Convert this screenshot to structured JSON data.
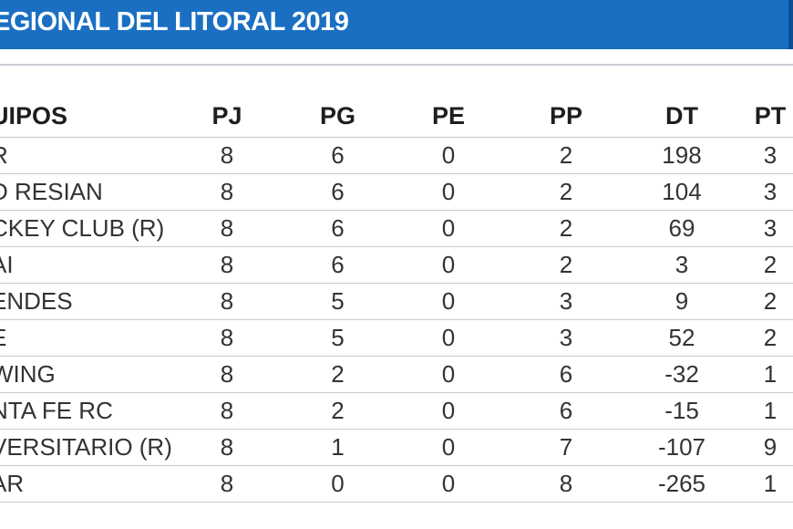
{
  "banner": {
    "title": "EGIONAL DEL LITORAL 2019",
    "color": "#1a6fc2"
  },
  "table": {
    "headers": [
      "UIPOS",
      "PJ",
      "PG",
      "PE",
      "PP",
      "DT",
      "PT"
    ],
    "rows": [
      [
        "R",
        "8",
        "6",
        "0",
        "2",
        "198",
        "3"
      ],
      [
        "D RESIAN",
        "8",
        "6",
        "0",
        "2",
        "104",
        "3"
      ],
      [
        "CKEY CLUB (R)",
        "8",
        "6",
        "0",
        "2",
        "69",
        "3"
      ],
      [
        "AI",
        "8",
        "6",
        "0",
        "2",
        "3",
        "2"
      ],
      [
        "ENDES",
        "8",
        "5",
        "0",
        "3",
        "9",
        "2"
      ],
      [
        "E",
        "8",
        "5",
        "0",
        "3",
        "52",
        "2"
      ],
      [
        "WING",
        "8",
        "2",
        "0",
        "6",
        "-32",
        "1"
      ],
      [
        "NTA FE RC",
        "8",
        "2",
        "0",
        "6",
        "-15",
        "1"
      ],
      [
        "VERSITARIO (R)",
        "8",
        "1",
        "0",
        "7",
        "-107",
        "9"
      ],
      [
        "AR",
        "8",
        "0",
        "0",
        "8",
        "-265",
        "1"
      ]
    ]
  }
}
